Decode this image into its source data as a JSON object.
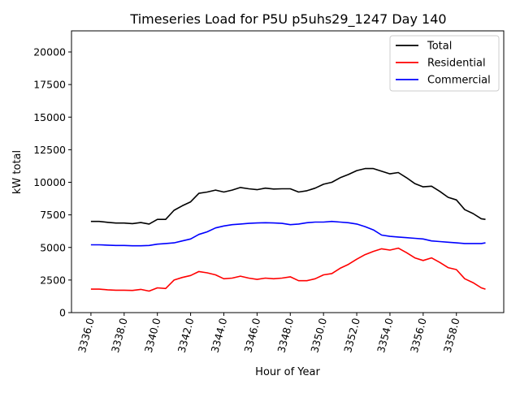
{
  "chart_data": {
    "type": "line",
    "title": "Timeseries Load for P5U p5uhs29_1247  Day 140",
    "xlabel": "Hour of Year",
    "ylabel": "kW total",
    "xlim": [
      3334.83,
      3360.85
    ],
    "ylim": [
      0,
      21620
    ],
    "xticks": [
      3336,
      3338,
      3340,
      3342,
      3344,
      3346,
      3348,
      3350,
      3352,
      3354,
      3356,
      3358
    ],
    "xtick_labels": [
      "3336.0",
      "3338.0",
      "3340.0",
      "3342.0",
      "3344.0",
      "3346.0",
      "3348.0",
      "3350.0",
      "3352.0",
      "3354.0",
      "3356.0",
      "3358.0"
    ],
    "yticks": [
      0,
      2500,
      5000,
      7500,
      10000,
      12500,
      15000,
      17500,
      20000
    ],
    "ytick_labels": [
      "0",
      "2500",
      "5000",
      "7500",
      "10000",
      "12500",
      "15000",
      "17500",
      "20000"
    ],
    "grid": false,
    "legend_position": "top-right",
    "x": [
      3336,
      3336.5,
      3337,
      3337.5,
      3338,
      3338.5,
      3339,
      3339.5,
      3340,
      3340.5,
      3341,
      3341.5,
      3342,
      3342.5,
      3343,
      3343.5,
      3344,
      3344.5,
      3345,
      3345.5,
      3346,
      3346.5,
      3347,
      3347.5,
      3348,
      3348.5,
      3349,
      3349.5,
      3350,
      3350.5,
      3351,
      3351.5,
      3352,
      3352.5,
      3353,
      3353.5,
      3354,
      3354.5,
      3355,
      3355.5,
      3356,
      3356.5,
      3357,
      3357.5,
      3358,
      3358.5,
      3359,
      3359.5,
      3359.75
    ],
    "series": [
      {
        "name": "Total",
        "color": "#000000",
        "values": [
          7000,
          7000,
          6930,
          6870,
          6870,
          6830,
          6910,
          6800,
          7150,
          7150,
          7850,
          8200,
          8500,
          9150,
          9250,
          9400,
          9250,
          9400,
          9600,
          9500,
          9430,
          9550,
          9480,
          9500,
          9500,
          9250,
          9350,
          9550,
          9850,
          10000,
          10350,
          10600,
          10900,
          11050,
          11050,
          10850,
          10650,
          10750,
          10350,
          9900,
          9650,
          9700,
          9300,
          8850,
          8650,
          7900,
          7600,
          7200,
          7150
        ]
      },
      {
        "name": "Residential",
        "color": "#ff0000",
        "values": [
          1800,
          1800,
          1750,
          1720,
          1720,
          1700,
          1780,
          1650,
          1900,
          1850,
          2500,
          2700,
          2850,
          3150,
          3050,
          2900,
          2600,
          2650,
          2800,
          2650,
          2550,
          2650,
          2600,
          2650,
          2750,
          2450,
          2450,
          2600,
          2900,
          3000,
          3400,
          3700,
          4100,
          4450,
          4700,
          4900,
          4800,
          4950,
          4600,
          4200,
          4000,
          4200,
          3850,
          3450,
          3300,
          2600,
          2300,
          1900,
          1800
        ]
      },
      {
        "name": "Commercial",
        "color": "#0000ff",
        "values": [
          5200,
          5200,
          5180,
          5150,
          5150,
          5130,
          5130,
          5150,
          5250,
          5300,
          5350,
          5500,
          5650,
          6000,
          6200,
          6500,
          6650,
          6750,
          6800,
          6850,
          6880,
          6900,
          6880,
          6850,
          6750,
          6800,
          6900,
          6950,
          6950,
          7000,
          6950,
          6900,
          6800,
          6600,
          6350,
          5950,
          5850,
          5800,
          5750,
          5700,
          5650,
          5500,
          5450,
          5400,
          5350,
          5300,
          5300,
          5300,
          5350
        ]
      }
    ]
  }
}
